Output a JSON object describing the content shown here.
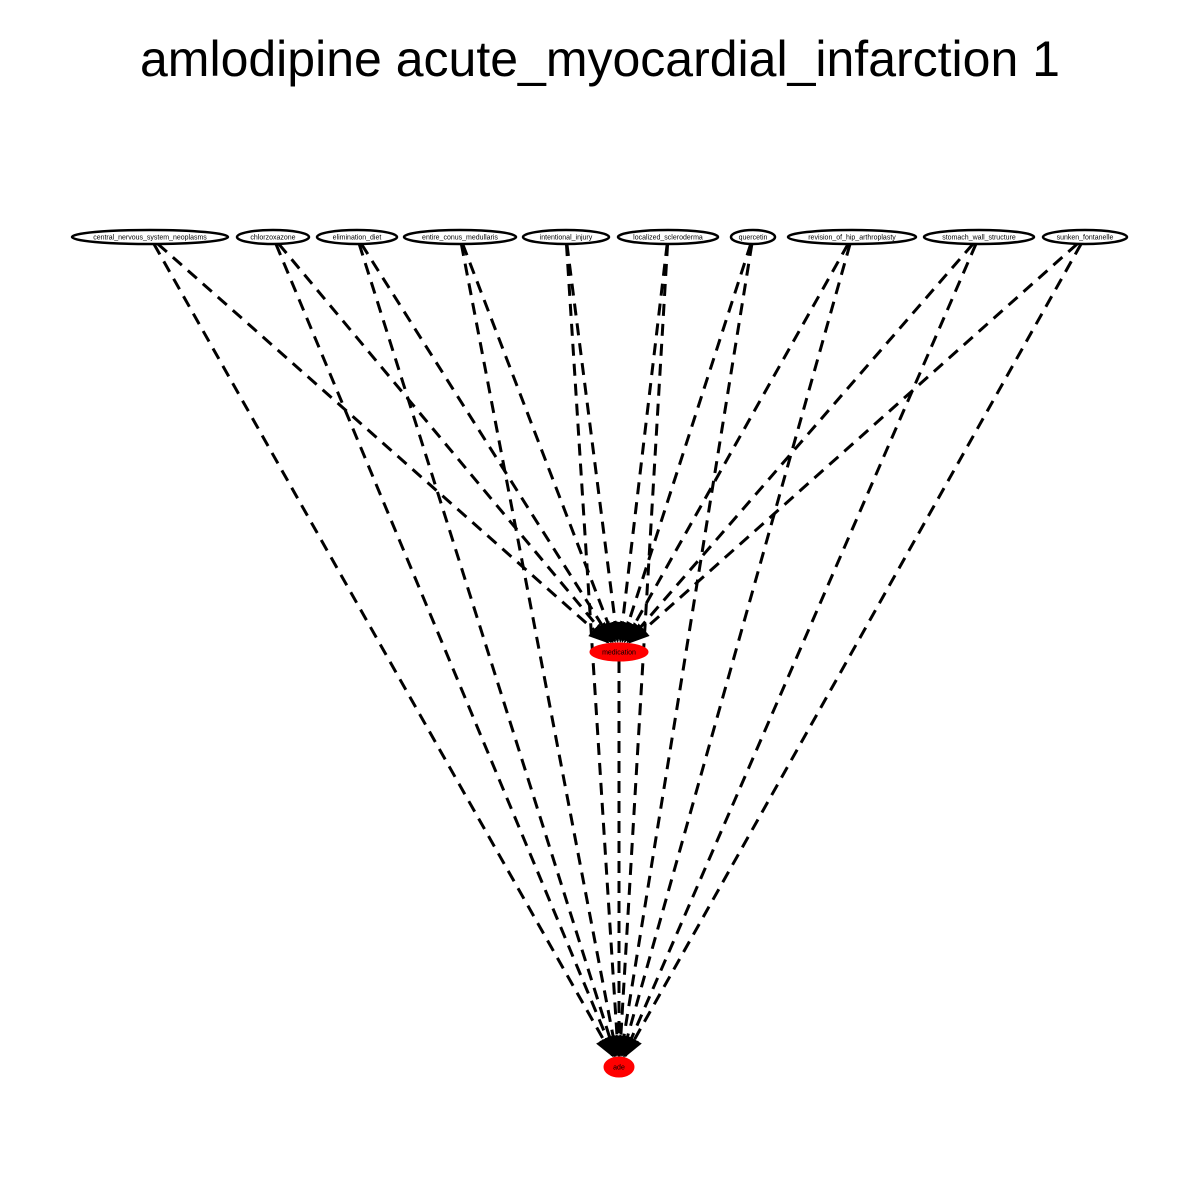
{
  "title": "amlodipine acute_myocardial_infarction 1",
  "colors": {
    "highlight": "#ff0000",
    "stroke": "#000000",
    "background": "#ffffff"
  },
  "nodes": [
    {
      "id": "central_nervous_system_neoplasms",
      "label": "central_nervous_system_neoplasms",
      "row": "top",
      "highlight": false
    },
    {
      "id": "chlorzoxazone",
      "label": "chlorzoxazone",
      "row": "top",
      "highlight": false
    },
    {
      "id": "elimination_diet",
      "label": "elimination_diet",
      "row": "top",
      "highlight": false
    },
    {
      "id": "entire_conus_medullaris",
      "label": "entire_conus_medullaris",
      "row": "top",
      "highlight": false
    },
    {
      "id": "intentional_injury",
      "label": "intentional_injury",
      "row": "top",
      "highlight": false
    },
    {
      "id": "localized_scleroderma",
      "label": "localized_scleroderma",
      "row": "top",
      "highlight": false
    },
    {
      "id": "quercetin",
      "label": "quercetin",
      "row": "top",
      "highlight": false
    },
    {
      "id": "revision_of_hip_arthroplasty",
      "label": "revision_of_hip_arthroplasty",
      "row": "top",
      "highlight": false
    },
    {
      "id": "stomach_wall_structure",
      "label": "stomach_wall_structure",
      "row": "top",
      "highlight": false
    },
    {
      "id": "sunken_fontanelle",
      "label": "sunken_fontanelle",
      "row": "top",
      "highlight": false
    },
    {
      "id": "medication",
      "label": "medication",
      "row": "middle",
      "highlight": true
    },
    {
      "id": "ade",
      "label": "ade",
      "row": "bottom",
      "highlight": true
    }
  ],
  "edges": [
    {
      "from": "central_nervous_system_neoplasms",
      "to": "medication",
      "style": "dashed"
    },
    {
      "from": "central_nervous_system_neoplasms",
      "to": "ade",
      "style": "dashed"
    },
    {
      "from": "chlorzoxazone",
      "to": "medication",
      "style": "dashed"
    },
    {
      "from": "chlorzoxazone",
      "to": "ade",
      "style": "dashed"
    },
    {
      "from": "elimination_diet",
      "to": "medication",
      "style": "dashed"
    },
    {
      "from": "elimination_diet",
      "to": "ade",
      "style": "dashed"
    },
    {
      "from": "entire_conus_medullaris",
      "to": "medication",
      "style": "dashed"
    },
    {
      "from": "entire_conus_medullaris",
      "to": "ade",
      "style": "dashed"
    },
    {
      "from": "intentional_injury",
      "to": "medication",
      "style": "dashed"
    },
    {
      "from": "intentional_injury",
      "to": "ade",
      "style": "dashed"
    },
    {
      "from": "localized_scleroderma",
      "to": "medication",
      "style": "dashed"
    },
    {
      "from": "localized_scleroderma",
      "to": "ade",
      "style": "dashed"
    },
    {
      "from": "quercetin",
      "to": "medication",
      "style": "dashed"
    },
    {
      "from": "quercetin",
      "to": "ade",
      "style": "dashed"
    },
    {
      "from": "revision_of_hip_arthroplasty",
      "to": "medication",
      "style": "dashed"
    },
    {
      "from": "revision_of_hip_arthroplasty",
      "to": "ade",
      "style": "dashed"
    },
    {
      "from": "stomach_wall_structure",
      "to": "medication",
      "style": "dashed"
    },
    {
      "from": "stomach_wall_structure",
      "to": "ade",
      "style": "dashed"
    },
    {
      "from": "sunken_fontanelle",
      "to": "medication",
      "style": "dashed"
    },
    {
      "from": "sunken_fontanelle",
      "to": "ade",
      "style": "dashed"
    },
    {
      "from": "medication",
      "to": "ade",
      "style": "dashed"
    }
  ]
}
